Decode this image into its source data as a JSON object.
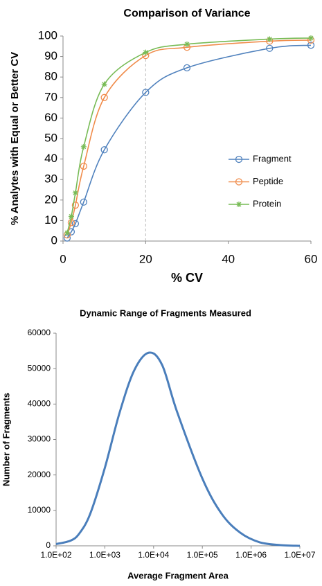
{
  "chart_data": [
    {
      "type": "line",
      "title": "Comparison of Variance",
      "x_label": "% CV",
      "y_label": "% Analytes with Equal or Better CV",
      "x": [
        1,
        2,
        3,
        5,
        10,
        20,
        30,
        50,
        60
      ],
      "series": [
        {
          "name": "Fragment",
          "color": "#4f81bd",
          "marker": "circle",
          "values": [
            1.5,
            4.5,
            8.5,
            19,
            44.5,
            72.5,
            84.5,
            94,
            95.5
          ]
        },
        {
          "name": "Peptide",
          "color": "#f08c4b",
          "marker": "circle",
          "values": [
            3,
            9,
            17.5,
            36.5,
            70,
            90.5,
            94.5,
            97.5,
            98
          ]
        },
        {
          "name": "Protein",
          "color": "#77bb55",
          "marker": "star",
          "values": [
            4,
            12,
            23.5,
            46,
            76.5,
            92,
            96,
            98.5,
            99
          ]
        }
      ],
      "xlim": [
        0,
        60
      ],
      "xticks": [
        0,
        20,
        40,
        60
      ],
      "ylim": [
        0,
        100
      ],
      "yticks": [
        0,
        10,
        20,
        30,
        40,
        50,
        60,
        70,
        80,
        90,
        100
      ],
      "vline": 20,
      "legend": "right",
      "grid": false
    },
    {
      "type": "line",
      "title": "Dynamic Range of Fragments Measured",
      "x_label": "Average Fragment Area",
      "y_label": "Number of Fragments",
      "xscale": "log",
      "color": "#4a7ebb",
      "x": [
        100,
        200,
        300,
        500,
        1000,
        2000,
        4000,
        8000,
        15000,
        30000,
        100000,
        250000,
        600000,
        1500000,
        4000000,
        10000000
      ],
      "values": [
        500,
        1500,
        3500,
        9000,
        22000,
        37500,
        49500,
        54500,
        51000,
        38000,
        19000,
        9000,
        3700,
        1000,
        200,
        0
      ],
      "xlim": [
        100,
        10000000
      ],
      "xticks": [
        {
          "value": 100,
          "label": "1.0E+02"
        },
        {
          "value": 1000,
          "label": "1.0E+03"
        },
        {
          "value": 10000,
          "label": "1.0E+04"
        },
        {
          "value": 100000,
          "label": "1.0E+05"
        },
        {
          "value": 1000000,
          "label": "1.0E+06"
        },
        {
          "value": 10000000,
          "label": "1.0E+07"
        }
      ],
      "ylim": [
        0,
        60000
      ],
      "yticks": [
        0,
        10000,
        20000,
        30000,
        40000,
        50000,
        60000
      ],
      "grid": false
    }
  ]
}
